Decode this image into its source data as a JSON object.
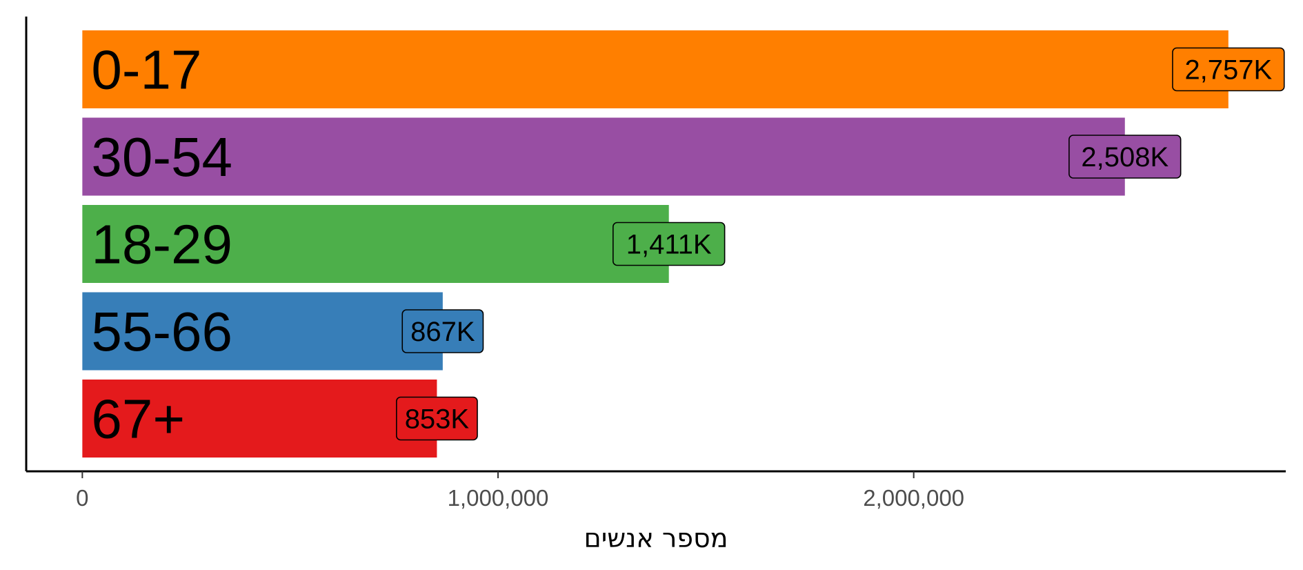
{
  "chart_data": {
    "type": "bar",
    "orientation": "horizontal",
    "title": "",
    "xlabel": "מספר אנשים",
    "ylabel": "",
    "xlim": [
      -135000,
      2895000
    ],
    "grid": false,
    "legend": "none",
    "x_ticks": [
      {
        "value": 0,
        "label": "0"
      },
      {
        "value": 1000000,
        "label": "1,000,000"
      },
      {
        "value": 2000000,
        "label": "2,000,000"
      }
    ],
    "bars": [
      {
        "category": "0-17",
        "value": 2757000,
        "label": "2,757K",
        "color": "#FF7F00"
      },
      {
        "category": "30-54",
        "value": 2508000,
        "label": "2,508K",
        "color": "#984EA3"
      },
      {
        "category": "18-29",
        "value": 1411000,
        "label": "1,411K",
        "color": "#4DAF4A"
      },
      {
        "category": "55-66",
        "value": 867000,
        "label": "867K",
        "color": "#377EB8"
      },
      {
        "category": "67+",
        "value": 853000,
        "label": "853K",
        "color": "#E41A1C"
      }
    ]
  }
}
